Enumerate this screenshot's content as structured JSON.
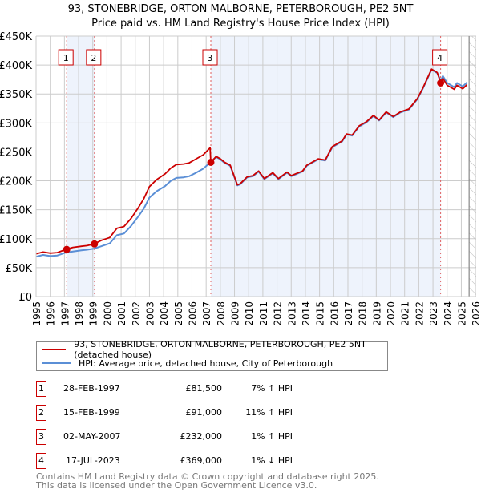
{
  "title": "93, STONEBRIDGE, ORTON MALBORNE, PETERBOROUGH, PE2 5NT",
  "subtitle": "Price paid vs. HM Land Registry's House Price Index (HPI)",
  "colors": {
    "price_paid": "#cc0000",
    "hpi": "#5b8fd6",
    "shade": "#eef3fc"
  },
  "chart_data": {
    "type": "line",
    "xlim": [
      1995,
      2026.05
    ],
    "ylim": [
      0,
      450000
    ],
    "yticks": [
      0,
      50000,
      100000,
      150000,
      200000,
      250000,
      300000,
      350000,
      400000,
      450000
    ],
    "ytick_labels": [
      "£0",
      "£50K",
      "£100K",
      "£150K",
      "£200K",
      "£250K",
      "£300K",
      "£350K",
      "£400K",
      "£450K"
    ],
    "xticks": [
      1995,
      1996,
      1997,
      1998,
      1999,
      2000,
      2001,
      2002,
      2003,
      2004,
      2005,
      2006,
      2007,
      2008,
      2009,
      2010,
      2011,
      2012,
      2013,
      2014,
      2015,
      2016,
      2017,
      2018,
      2019,
      2020,
      2021,
      2022,
      2023,
      2024,
      2025,
      2026
    ],
    "grid": true,
    "forecast_start": 2025.55,
    "series": [
      {
        "name": "HPI: Average price, detached house, City of Peterborough",
        "color": "#5b8fd6",
        "x": [
          1995.0,
          1995.5,
          1996.0,
          1996.5,
          1997.1,
          1997.6,
          1998.2,
          1998.6,
          1999.1,
          1999.6,
          2000.2,
          2000.7,
          2001.2,
          2001.7,
          2002.2,
          2002.6,
          2003.0,
          2003.5,
          2004.1,
          2004.5,
          2004.9,
          2005.4,
          2005.8,
          2006.3,
          2006.8,
          2007.3,
          2007.7,
          2008.0,
          2008.3,
          2008.7,
          2009.2,
          2009.4,
          2009.9,
          2010.3,
          2010.7,
          2011.1,
          2011.7,
          2012.1,
          2012.7,
          2013.0,
          2013.8,
          2014.1,
          2014.9,
          2015.4,
          2015.9,
          2016.6,
          2016.9,
          2017.3,
          2017.8,
          2018.3,
          2018.8,
          2019.2,
          2019.7,
          2020.2,
          2020.7,
          2021.3,
          2021.9,
          2022.3,
          2022.9,
          2023.3,
          2023.55,
          2023.7,
          2024.0,
          2024.5,
          2024.7,
          2025.1,
          2025.4
        ],
        "y": [
          69000,
          72000,
          70000,
          71000,
          76000,
          78000,
          80000,
          81000,
          83000,
          87000,
          92000,
          106000,
          109000,
          122000,
          138000,
          152000,
          171000,
          182000,
          191000,
          200000,
          205000,
          206000,
          208000,
          214000,
          221000,
          232000,
          241000,
          237000,
          231000,
          226000,
          192000,
          194000,
          206000,
          208000,
          216000,
          203000,
          213000,
          203000,
          214000,
          208000,
          216000,
          226000,
          237000,
          235000,
          258000,
          268000,
          280000,
          278000,
          294000,
          301000,
          312000,
          304000,
          318000,
          310000,
          318000,
          323000,
          341000,
          360000,
          392000,
          386000,
          373000,
          381000,
          369000,
          362000,
          369000,
          363000,
          370000
        ]
      },
      {
        "name": "93, STONEBRIDGE, ORTON MALBORNE, PETERBOROUGH, PE2 5NT (detached house)",
        "color": "#cc0000",
        "x": [
          1995.0,
          1995.5,
          1996.0,
          1996.5,
          1997.1,
          1997.6,
          1998.2,
          1998.6,
          1999.1,
          1999.6,
          2000.2,
          2000.7,
          2001.2,
          2001.7,
          2002.2,
          2002.6,
          2003.0,
          2003.5,
          2004.1,
          2004.5,
          2004.9,
          2005.4,
          2005.8,
          2006.3,
          2006.8,
          2007.28,
          2007.33,
          2007.7,
          2008.0,
          2008.3,
          2008.7,
          2009.2,
          2009.4,
          2009.9,
          2010.3,
          2010.7,
          2011.1,
          2011.7,
          2012.1,
          2012.7,
          2013.0,
          2013.8,
          2014.1,
          2014.9,
          2015.4,
          2015.9,
          2016.6,
          2016.9,
          2017.3,
          2017.8,
          2018.3,
          2018.8,
          2019.2,
          2019.7,
          2020.2,
          2020.7,
          2021.3,
          2021.9,
          2022.3,
          2022.9,
          2023.3,
          2023.55,
          2023.7,
          2024.0,
          2024.5,
          2024.7,
          2025.1,
          2025.4
        ],
        "y": [
          74000,
          77000,
          75000,
          76000,
          81500,
          85000,
          87000,
          88000,
          91000,
          97000,
          102000,
          118000,
          121000,
          135000,
          153000,
          169000,
          190000,
          202000,
          212000,
          222000,
          228000,
          229000,
          231000,
          238000,
          245000,
          257000,
          232000,
          242000,
          238000,
          232000,
          227000,
          193000,
          195000,
          207000,
          209000,
          217000,
          204000,
          214000,
          204000,
          215000,
          209000,
          217000,
          227000,
          238000,
          236000,
          259000,
          269000,
          281000,
          279000,
          295000,
          302000,
          313000,
          305000,
          319000,
          311000,
          319000,
          324000,
          342000,
          361000,
          393000,
          387000,
          369000,
          377000,
          365000,
          358000,
          365000,
          359000,
          366000
        ]
      }
    ],
    "sales": [
      {
        "n": "1",
        "x": 1997.16,
        "y": 81500
      },
      {
        "n": "2",
        "x": 1999.12,
        "y": 91000
      },
      {
        "n": "3",
        "x": 2007.33,
        "y": 232000
      },
      {
        "n": "4",
        "x": 2023.54,
        "y": 369000
      }
    ]
  },
  "legend": [
    {
      "label": "93, STONEBRIDGE, ORTON MALBORNE, PETERBOROUGH, PE2 5NT (detached house)",
      "color": "#cc0000"
    },
    {
      "label": "HPI: Average price, detached house, City of Peterborough",
      "color": "#5b8fd6"
    }
  ],
  "transactions": [
    {
      "n": "1",
      "date": "28-FEB-1997",
      "price": "£81,500",
      "hpi": "7% ↑ HPI"
    },
    {
      "n": "2",
      "date": "15-FEB-1999",
      "price": "£91,000",
      "hpi": "11% ↑ HPI"
    },
    {
      "n": "3",
      "date": "02-MAY-2007",
      "price": "£232,000",
      "hpi": "1% ↑ HPI"
    },
    {
      "n": "4",
      "date": "17-JUL-2023",
      "price": "£369,000",
      "hpi": "1% ↓ HPI"
    }
  ],
  "footer": {
    "line1": "Contains HM Land Registry data © Crown copyright and database right 2025.",
    "line2": "This data is licensed under the Open Government Licence v3.0."
  }
}
